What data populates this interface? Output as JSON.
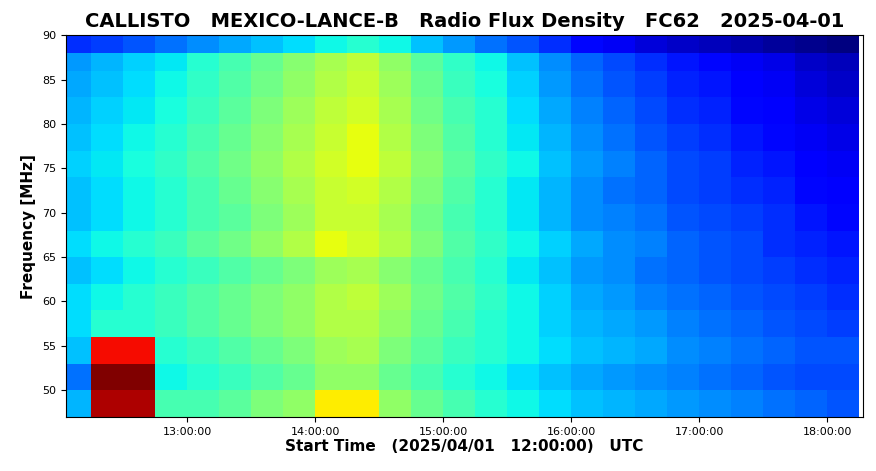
{
  "chart_data": {
    "type": "heatmap",
    "title": "CALLISTO   MEXICO-LANCE-B   Radio Flux Density   FC62   2025-04-01",
    "x_label": "Start Time   (2025/04/01   12:00:00)   UTC",
    "y_label": "Frequency [MHz]",
    "xlim": [
      12.05,
      18.28
    ],
    "ylim": [
      47,
      90
    ],
    "xticks": [
      {
        "value": 13,
        "label": "13:00:00"
      },
      {
        "value": 14,
        "label": "14:00:00"
      },
      {
        "value": 15,
        "label": "15:00:00"
      },
      {
        "value": 16,
        "label": "16:00:00"
      },
      {
        "value": 17,
        "label": "17:00:00"
      },
      {
        "value": 18,
        "label": "18:00:00"
      }
    ],
    "yticks": [
      50,
      55,
      60,
      65,
      70,
      75,
      80,
      85,
      90
    ],
    "x_edges": [
      12.0,
      12.25,
      12.5,
      12.75,
      13.0,
      13.25,
      13.5,
      13.75,
      14.0,
      14.25,
      14.5,
      14.75,
      15.0,
      15.25,
      15.5,
      15.75,
      16.0,
      16.25,
      16.5,
      16.75,
      17.0,
      17.25,
      17.5,
      17.75,
      18.0,
      18.25
    ],
    "y_edges": [
      47,
      50,
      53,
      56,
      59,
      62,
      65,
      68,
      71,
      74,
      77,
      80,
      83,
      86,
      88,
      90
    ],
    "cells": [
      [
        35,
        85,
        85,
        45,
        45,
        47,
        50,
        52,
        62,
        62,
        52,
        48,
        45,
        42,
        40,
        38,
        36,
        35,
        34,
        33,
        32,
        31,
        30,
        29,
        28
      ],
      [
        30,
        88,
        88,
        40,
        42,
        44,
        46,
        48,
        52,
        52,
        48,
        45,
        42,
        40,
        38,
        36,
        34,
        33,
        32,
        31,
        30,
        29,
        28,
        27,
        27
      ],
      [
        36,
        80,
        80,
        42,
        44,
        46,
        48,
        50,
        53,
        54,
        50,
        47,
        44,
        42,
        40,
        38,
        36,
        35,
        34,
        32,
        31,
        30,
        29,
        28,
        28
      ],
      [
        38,
        42,
        42,
        44,
        46,
        48,
        50,
        52,
        55,
        55,
        52,
        48,
        45,
        42,
        40,
        37,
        35,
        34,
        33,
        31,
        30,
        29,
        28,
        27,
        26
      ],
      [
        38,
        40,
        42,
        44,
        46,
        48,
        50,
        52,
        55,
        56,
        53,
        49,
        46,
        43,
        40,
        37,
        34,
        33,
        31,
        30,
        29,
        28,
        27,
        26,
        25
      ],
      [
        36,
        38,
        40,
        42,
        44,
        46,
        48,
        50,
        53,
        54,
        51,
        48,
        45,
        42,
        39,
        36,
        33,
        32,
        30,
        29,
        28,
        27,
        26,
        25,
        24
      ],
      [
        38,
        40,
        42,
        44,
        47,
        49,
        52,
        55,
        60,
        58,
        55,
        50,
        46,
        43,
        40,
        37,
        34,
        32,
        31,
        29,
        28,
        27,
        25,
        24,
        23
      ],
      [
        36,
        38,
        40,
        42,
        45,
        47,
        50,
        53,
        57,
        57,
        54,
        49,
        45,
        42,
        39,
        35,
        32,
        31,
        30,
        28,
        27,
        26,
        25,
        23,
        22
      ],
      [
        36,
        38,
        40,
        42,
        45,
        48,
        51,
        54,
        57,
        58,
        55,
        50,
        46,
        42,
        39,
        35,
        32,
        30,
        29,
        27,
        26,
        25,
        24,
        22,
        21
      ],
      [
        37,
        39,
        41,
        43,
        46,
        49,
        52,
        55,
        58,
        60,
        56,
        51,
        47,
        43,
        40,
        36,
        33,
        31,
        29,
        27,
        26,
        24,
        23,
        21,
        20
      ],
      [
        36,
        38,
        40,
        42,
        45,
        48,
        51,
        54,
        57,
        60,
        55,
        50,
        46,
        42,
        39,
        35,
        32,
        30,
        28,
        26,
        25,
        23,
        22,
        20,
        19
      ],
      [
        35,
        37,
        39,
        41,
        44,
        47,
        50,
        53,
        56,
        58,
        54,
        49,
        45,
        42,
        38,
        34,
        31,
        29,
        27,
        25,
        24,
        22,
        21,
        19,
        18
      ],
      [
        34,
        36,
        38,
        40,
        43,
        46,
        49,
        52,
        55,
        57,
        53,
        48,
        44,
        41,
        37,
        33,
        30,
        28,
        26,
        24,
        23,
        21,
        20,
        18,
        17
      ],
      [
        33,
        35,
        37,
        39,
        42,
        45,
        48,
        51,
        54,
        56,
        52,
        47,
        43,
        40,
        36,
        32,
        29,
        27,
        25,
        23,
        22,
        20,
        19,
        17,
        16
      ],
      [
        25,
        26,
        28,
        30,
        32,
        34,
        36,
        38,
        40,
        42,
        40,
        36,
        33,
        30,
        28,
        25,
        22,
        20,
        18,
        17,
        16,
        15,
        14,
        13,
        12
      ]
    ]
  }
}
